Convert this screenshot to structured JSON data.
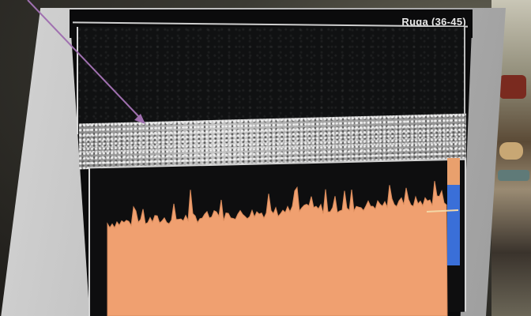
{
  "title": "Ruga (36-45)",
  "colors": {
    "signal_fill": "#f0a070",
    "signal_edge": "#d98a5a",
    "marker_blue": "#3a6fd8",
    "arrow": "#a070b0",
    "frame": "#d6d6d6"
  },
  "annotation": {
    "type": "arrow",
    "icon": "arrow-pointer-icon"
  }
}
